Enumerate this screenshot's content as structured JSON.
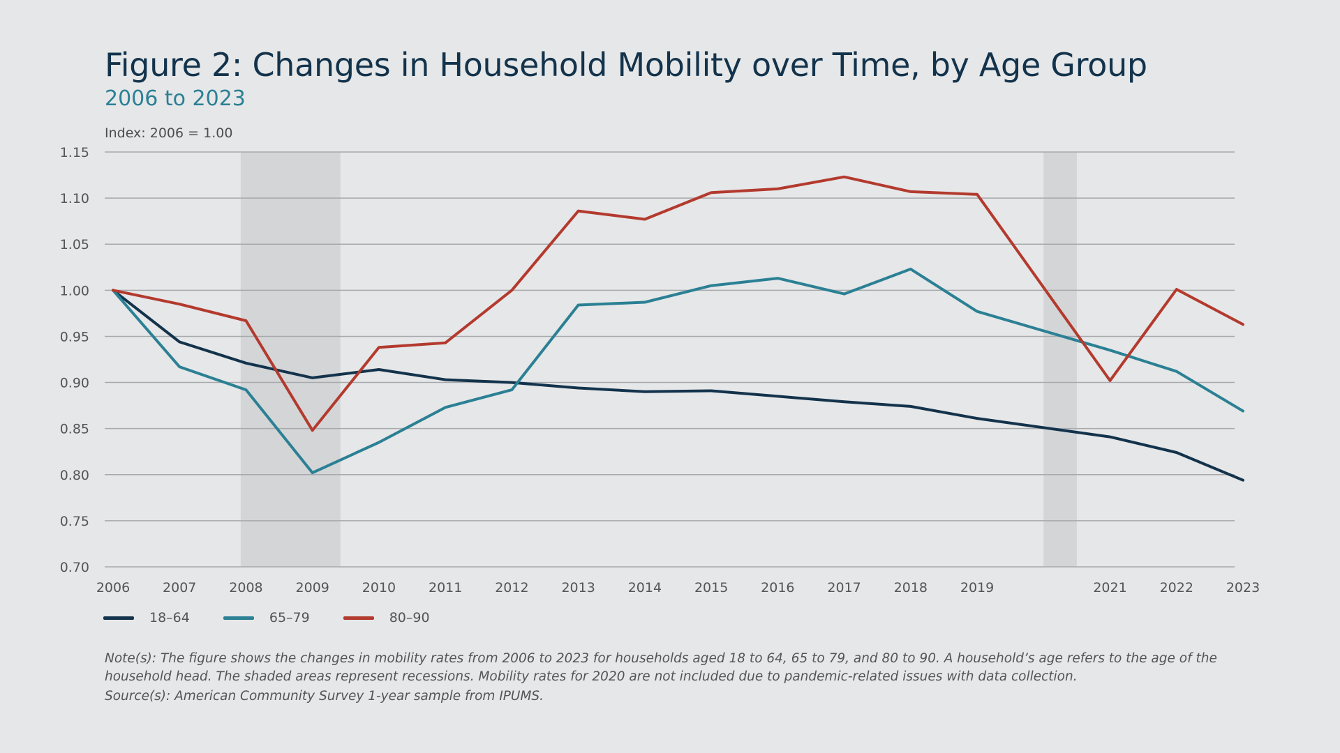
{
  "header": {
    "title": "Figure 2: Changes in Household Mobility over Time, by Age Group",
    "subtitle": "2006 to 2023",
    "y_caption": "Index: 2006 = 1.00"
  },
  "footer": {
    "note": "Note(s): The figure shows the changes in mobility rates from 2006 to 2023 for households aged 18 to 64, 65 to 79, and 80 to 90. A household’s age refers to the age of the household head. The shaded areas represent recessions. Mobility rates for 2020 are not included due to pandemic-related issues with data collection.",
    "source": "Source(s): American Community Survey 1-year sample from IPUMS."
  },
  "chart_data": {
    "type": "line",
    "x_ticks": [
      "2006",
      "2007",
      "2008",
      "2009",
      "2010",
      "2011",
      "2012",
      "2013",
      "2014",
      "2015",
      "2016",
      "2017",
      "2018",
      "2019",
      "2021",
      "2022",
      "2023"
    ],
    "y_ticks": [
      "0.70",
      "0.75",
      "0.80",
      "0.85",
      "0.90",
      "0.95",
      "1.00",
      "1.05",
      "1.10",
      "1.15"
    ],
    "xlim": [
      2006,
      2023
    ],
    "ylim": [
      0.7,
      1.15
    ],
    "grid": true,
    "legend_position": "bottom-left",
    "recessions": [
      [
        2007.92,
        2009.42
      ],
      [
        2020.0,
        2020.5
      ]
    ],
    "series": [
      {
        "name": "18–64",
        "color": "#13334c",
        "x": [
          2006,
          2007,
          2008,
          2009,
          2010,
          2011,
          2012,
          2013,
          2014,
          2015,
          2016,
          2017,
          2018,
          2019,
          2021,
          2022,
          2023
        ],
        "y": [
          1.0,
          0.944,
          0.921,
          0.905,
          0.914,
          0.903,
          0.9,
          0.894,
          0.89,
          0.891,
          0.885,
          0.879,
          0.874,
          0.861,
          0.841,
          0.824,
          0.794
        ]
      },
      {
        "name": "65–79",
        "color": "#2b8094",
        "x": [
          2006,
          2007,
          2008,
          2009,
          2010,
          2011,
          2012,
          2013,
          2014,
          2015,
          2016,
          2017,
          2018,
          2019,
          2021,
          2022,
          2023
        ],
        "y": [
          1.0,
          0.917,
          0.892,
          0.802,
          0.835,
          0.873,
          0.892,
          0.984,
          0.987,
          1.005,
          1.013,
          0.996,
          1.023,
          0.977,
          0.935,
          0.912,
          0.869
        ]
      },
      {
        "name": "80–90",
        "color": "#b33a2e",
        "x": [
          2006,
          2007,
          2008,
          2009,
          2010,
          2011,
          2012,
          2013,
          2014,
          2015,
          2016,
          2017,
          2018,
          2019,
          2021,
          2022,
          2023
        ],
        "y": [
          1.0,
          0.985,
          0.967,
          0.848,
          0.938,
          0.943,
          1.0,
          1.086,
          1.077,
          1.106,
          1.11,
          1.123,
          1.107,
          1.104,
          0.902,
          1.001,
          0.963
        ]
      }
    ]
  }
}
